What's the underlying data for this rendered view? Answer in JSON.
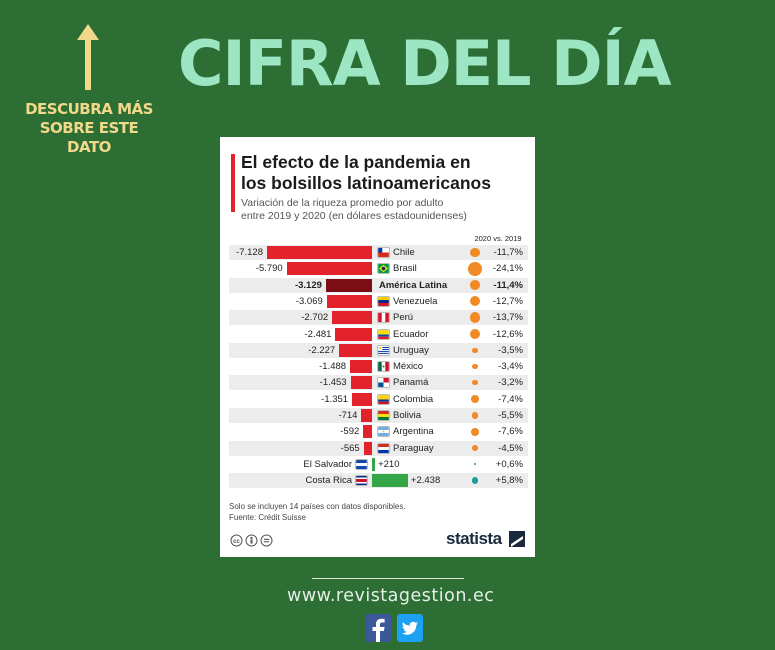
{
  "promo": {
    "line1": "DESCUBRA MÁS",
    "line2": "SOBRE ESTE DATO",
    "arrow_icon": "up-arrow-icon"
  },
  "headline": "CIFRA DEL DÍA",
  "card": {
    "title_line1": "El efecto de la pandemia en",
    "title_line2": "los bolsillos latinoamericanos",
    "subtitle_line1": "Variación de la riqueza promedio por adulto",
    "subtitle_line2": "entre 2019 y 2020 (en dólares estadounidenses)",
    "col_header": "2020 vs. 2019",
    "footnote_line1": "Solo se incluyen 14 países con datos disponibles.",
    "footnote_line2": "Fuente: Crédit Suisse",
    "brand": "statista",
    "license_icon": "creative-commons-icon"
  },
  "chart_data": {
    "type": "bar",
    "orientation": "horizontal",
    "title": "El efecto de la pandemia en los bolsillos latinoamericanos",
    "subtitle": "Variación de la riqueza promedio por adulto entre 2019 y 2020 (en dólares estadounidenses)",
    "pct_header": "2020 vs. 2019",
    "colors": {
      "negative": "#e3232c",
      "average": "#7c0d14",
      "positive": "#34a647",
      "dot": "#f08a24",
      "dot_positive": "#1e9c9c"
    },
    "categories": [
      "Chile",
      "Brasil",
      "América Latina",
      "Venezuela",
      "Perú",
      "Ecuador",
      "Uruguay",
      "México",
      "Panamá",
      "Colombia",
      "Bolivia",
      "Argentina",
      "Paraguay",
      "El Salvador",
      "Costa Rica"
    ],
    "values": [
      -7128,
      -5790,
      -3129,
      -3069,
      -2702,
      -2481,
      -2227,
      -1488,
      -1453,
      -1351,
      -714,
      -592,
      -565,
      210,
      2438
    ],
    "value_labels": [
      "-7.128",
      "-5.790",
      "-3.129",
      "-3.069",
      "-2.702",
      "-2.481",
      "-2.227",
      "-1.488",
      "-1.453",
      "-1.351",
      "-714",
      "-592",
      "-565",
      "+210",
      "+2.438"
    ],
    "percent_change": [
      -11.7,
      -24.1,
      -11.4,
      -12.7,
      -13.7,
      -12.6,
      -3.5,
      -3.4,
      -3.2,
      -7.4,
      -5.5,
      -7.6,
      -4.5,
      0.6,
      5.8
    ],
    "percent_labels": [
      "-11,7%",
      "-24,1%",
      "-11,4%",
      "-12,7%",
      "-13,7%",
      "-12,6%",
      "-3,5%",
      "-3,4%",
      "-3,2%",
      "-7,4%",
      "-5,5%",
      "-7,6%",
      "-4,5%",
      "+0,6%",
      "+5,8%"
    ],
    "highlight": "América Latina",
    "flags": [
      "chile-flag-icon",
      "brazil-flag-icon",
      "",
      "venezuela-flag-icon",
      "peru-flag-icon",
      "ecuador-flag-icon",
      "uruguay-flag-icon",
      "mexico-flag-icon",
      "panama-flag-icon",
      "colombia-flag-icon",
      "bolivia-flag-icon",
      "argentina-flag-icon",
      "paraguay-flag-icon",
      "el-salvador-flag-icon",
      "costa-rica-flag-icon"
    ]
  },
  "url": "www.revistagestion.ec",
  "social": {
    "facebook_icon": "facebook-icon",
    "twitter_icon": "twitter-icon",
    "facebook_color": "#3b5998",
    "twitter_color": "#1da1f2"
  }
}
